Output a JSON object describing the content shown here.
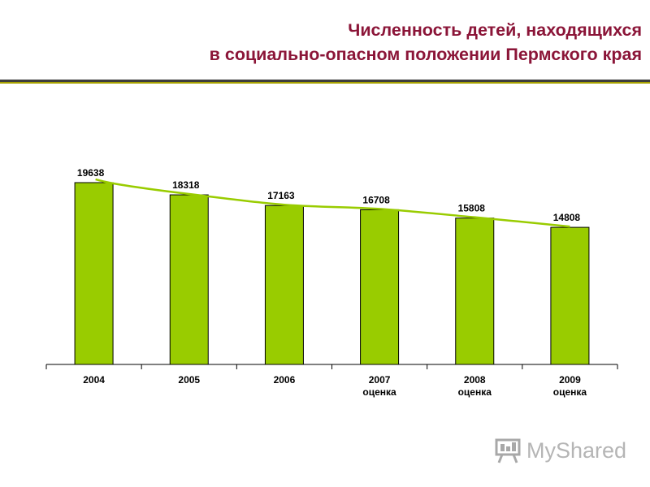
{
  "header": {
    "title_line1": "Численность детей, находящихся",
    "title_line2": "в социально-опасном положении Пермского края"
  },
  "chart_data": {
    "type": "bar",
    "categories": [
      [
        "2004"
      ],
      [
        "2005"
      ],
      [
        "2006"
      ],
      [
        "2007",
        "оценка"
      ],
      [
        "2008",
        "оценка"
      ],
      [
        "2009",
        "оценка"
      ]
    ],
    "values": [
      19638,
      18318,
      17163,
      16708,
      15808,
      14808
    ],
    "trendline": true,
    "title": "",
    "xlabel": "",
    "ylabel": "",
    "ylim": [
      0,
      21000
    ],
    "grid": false,
    "colors": {
      "bar": "#99CC00",
      "bar_edge": "#000000",
      "trend": "#99CC00",
      "title": "#8B1538"
    }
  },
  "watermark": {
    "text": "MyShared",
    "icon": "presentation-board-icon"
  }
}
